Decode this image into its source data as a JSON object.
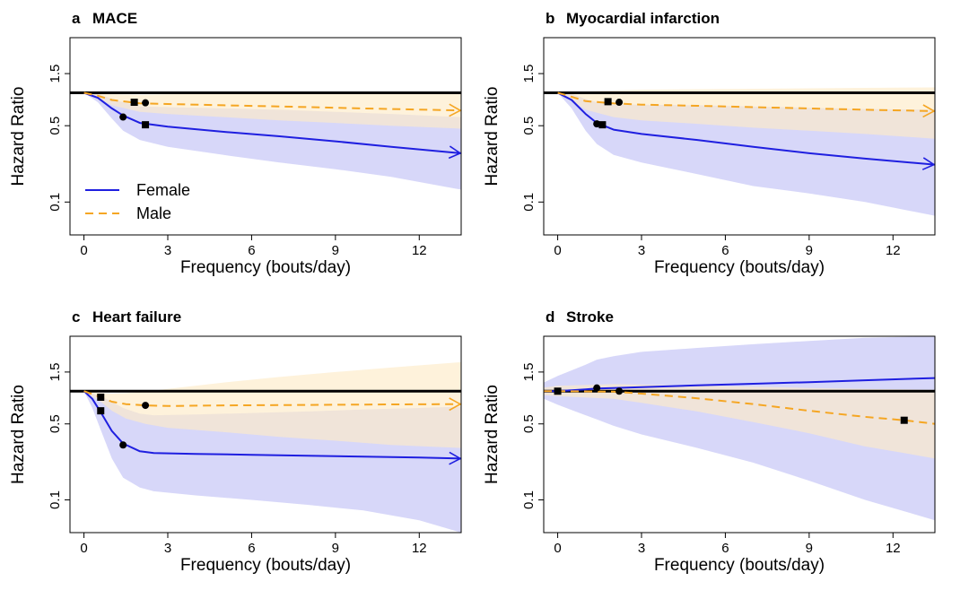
{
  "figure": {
    "xlabel": "Frequency (bouts/day)",
    "ylabel": "Hazard Ratio",
    "legend": {
      "position": "bottom-left of panel a",
      "entries": [
        {
          "name": "Female",
          "color": "#1f1fe0",
          "style": "solid"
        },
        {
          "name": "Male",
          "color": "#f5a623",
          "style": "dashed"
        }
      ]
    },
    "colors": {
      "female": "#1f1fe0",
      "male": "#f5a623",
      "female_band": "#c9c9f7",
      "male_band": "#fdebc8",
      "reference": "#000000"
    }
  },
  "chart_data": [
    {
      "type": "line",
      "letter": "a",
      "title": "MACE",
      "xlabel": "Frequency (bouts/day)",
      "ylabel": "Hazard Ratio",
      "xlim": [
        -0.5,
        13.5
      ],
      "ylim": [
        0.05,
        3.2
      ],
      "yscale": "log",
      "xticks": [
        0,
        3,
        6,
        9,
        12
      ],
      "yticks": [
        0.1,
        0.5,
        1.5
      ],
      "ytick_labels": [
        "0.1",
        "0.5",
        "1.5"
      ],
      "reference_hr": 1.0,
      "arrow_end": true,
      "series": [
        {
          "name": "Female",
          "x": [
            0,
            0.5,
            1,
            1.4,
            2,
            3,
            5,
            7,
            9,
            11,
            13.5
          ],
          "y": [
            1.0,
            0.9,
            0.72,
            0.62,
            0.53,
            0.49,
            0.44,
            0.4,
            0.36,
            0.32,
            0.28
          ],
          "lower": [
            1.0,
            0.82,
            0.58,
            0.45,
            0.37,
            0.32,
            0.27,
            0.23,
            0.2,
            0.17,
            0.13
          ],
          "upper": [
            1.0,
            0.98,
            0.88,
            0.82,
            0.75,
            0.74,
            0.72,
            0.7,
            0.67,
            0.64,
            0.6
          ],
          "markers": [
            {
              "x": 1.4,
              "y": 0.6,
              "shape": "circle"
            },
            {
              "x": 2.2,
              "y": 0.51,
              "shape": "square"
            }
          ]
        },
        {
          "name": "Male",
          "x": [
            0,
            0.5,
            1,
            2,
            3,
            5,
            7,
            9,
            11,
            13.5
          ],
          "y": [
            1.0,
            0.94,
            0.86,
            0.8,
            0.79,
            0.77,
            0.75,
            0.73,
            0.71,
            0.69
          ],
          "lower": [
            1.0,
            0.9,
            0.77,
            0.67,
            0.64,
            0.6,
            0.56,
            0.53,
            0.5,
            0.47
          ],
          "upper": [
            1.0,
            0.99,
            0.97,
            0.96,
            0.97,
            0.98,
            0.99,
            1.0,
            1.01,
            1.02
          ],
          "markers": [
            {
              "x": 1.8,
              "y": 0.82,
              "shape": "square"
            },
            {
              "x": 2.2,
              "y": 0.81,
              "shape": "circle"
            }
          ]
        }
      ]
    },
    {
      "type": "line",
      "letter": "b",
      "title": "Myocardial infarction",
      "xlabel": "Frequency (bouts/day)",
      "ylabel": "Hazard Ratio",
      "xlim": [
        -0.5,
        13.5
      ],
      "ylim": [
        0.05,
        3.2
      ],
      "yscale": "log",
      "xticks": [
        0,
        3,
        6,
        9,
        12
      ],
      "yticks": [
        0.1,
        0.5,
        1.5
      ],
      "ytick_labels": [
        "0.1",
        "0.5",
        "1.5"
      ],
      "reference_hr": 1.0,
      "arrow_end": true,
      "series": [
        {
          "name": "Female",
          "x": [
            0,
            0.5,
            1,
            1.4,
            2,
            3,
            5,
            7,
            9,
            11,
            13.5
          ],
          "y": [
            1.0,
            0.86,
            0.64,
            0.53,
            0.46,
            0.42,
            0.37,
            0.32,
            0.28,
            0.25,
            0.22
          ],
          "lower": [
            1.0,
            0.72,
            0.45,
            0.34,
            0.27,
            0.23,
            0.18,
            0.14,
            0.12,
            0.1,
            0.075
          ],
          "upper": [
            1.0,
            0.98,
            0.88,
            0.82,
            0.78,
            0.78,
            0.77,
            0.75,
            0.73,
            0.71,
            0.7
          ],
          "markers": [
            {
              "x": 1.4,
              "y": 0.52,
              "shape": "circle"
            },
            {
              "x": 1.6,
              "y": 0.51,
              "shape": "square"
            }
          ]
        },
        {
          "name": "Male",
          "x": [
            0,
            0.5,
            1,
            2,
            3,
            5,
            7,
            9,
            11,
            13.5
          ],
          "y": [
            1.0,
            0.92,
            0.84,
            0.8,
            0.78,
            0.76,
            0.74,
            0.72,
            0.7,
            0.68
          ],
          "lower": [
            1.0,
            0.85,
            0.7,
            0.6,
            0.56,
            0.52,
            0.48,
            0.45,
            0.42,
            0.38
          ],
          "upper": [
            1.0,
            1.02,
            1.03,
            1.05,
            1.07,
            1.08,
            1.09,
            1.1,
            1.11,
            1.12
          ],
          "markers": [
            {
              "x": 1.8,
              "y": 0.83,
              "shape": "square"
            },
            {
              "x": 2.2,
              "y": 0.82,
              "shape": "circle"
            }
          ]
        }
      ]
    },
    {
      "type": "line",
      "letter": "c",
      "title": "Heart failure",
      "xlabel": "Frequency (bouts/day)",
      "ylabel": "Hazard Ratio",
      "xlim": [
        -0.5,
        13.5
      ],
      "ylim": [
        0.05,
        3.2
      ],
      "yscale": "log",
      "xticks": [
        0,
        3,
        6,
        9,
        12
      ],
      "yticks": [
        0.1,
        0.5,
        1.5
      ],
      "ytick_labels": [
        "0.1",
        "0.5",
        "1.5"
      ],
      "reference_hr": 1.0,
      "arrow_end": true,
      "series": [
        {
          "name": "Female",
          "x": [
            0,
            0.3,
            0.6,
            1,
            1.4,
            2,
            2.5,
            4,
            6,
            8,
            10,
            12,
            13.5
          ],
          "y": [
            1.0,
            0.85,
            0.64,
            0.43,
            0.33,
            0.28,
            0.27,
            0.265,
            0.26,
            0.255,
            0.25,
            0.245,
            0.24
          ],
          "lower": [
            1.0,
            0.7,
            0.44,
            0.24,
            0.16,
            0.13,
            0.12,
            0.11,
            0.1,
            0.09,
            0.08,
            0.065,
            0.05
          ],
          "upper": [
            1.0,
            0.95,
            0.9,
            0.8,
            0.7,
            0.62,
            0.6,
            0.61,
            0.63,
            0.65,
            0.68,
            0.7,
            0.72
          ],
          "markers": [
            {
              "x": 0.6,
              "y": 0.66,
              "shape": "square"
            },
            {
              "x": 1.4,
              "y": 0.32,
              "shape": "circle"
            }
          ]
        },
        {
          "name": "Male",
          "x": [
            0,
            0.6,
            1,
            1.5,
            2.2,
            3,
            5,
            7,
            9,
            11,
            13.5
          ],
          "y": [
            1.0,
            0.88,
            0.8,
            0.76,
            0.74,
            0.73,
            0.74,
            0.745,
            0.75,
            0.755,
            0.76
          ],
          "lower": [
            1.0,
            0.8,
            0.66,
            0.56,
            0.5,
            0.46,
            0.42,
            0.38,
            0.35,
            0.32,
            0.3
          ],
          "upper": [
            1.0,
            0.96,
            0.95,
            0.96,
            0.99,
            1.05,
            1.2,
            1.35,
            1.5,
            1.65,
            1.85
          ],
          "markers": [
            {
              "x": 0.6,
              "y": 0.88,
              "shape": "square"
            },
            {
              "x": 2.2,
              "y": 0.74,
              "shape": "circle"
            }
          ]
        }
      ]
    },
    {
      "type": "line",
      "letter": "d",
      "title": "Stroke",
      "xlabel": "Frequency (bouts/day)",
      "ylabel": "Hazard Ratio",
      "xlim": [
        -0.5,
        13.5
      ],
      "ylim": [
        0.05,
        3.2
      ],
      "yscale": "log",
      "xticks": [
        0,
        3,
        6,
        9,
        12
      ],
      "yticks": [
        0.1,
        0.5,
        1.5
      ],
      "ytick_labels": [
        "0.1",
        "0.5",
        "1.5"
      ],
      "reference_hr": 1.0,
      "arrow_end": false,
      "series": [
        {
          "name": "Female",
          "x": [
            -0.5,
            0,
            1,
            1.4,
            2,
            3,
            5,
            7,
            9,
            11,
            13.5
          ],
          "y": [
            1.0,
            1.0,
            1.04,
            1.06,
            1.07,
            1.09,
            1.13,
            1.17,
            1.21,
            1.26,
            1.32
          ],
          "lower": [
            0.85,
            0.75,
            0.6,
            0.55,
            0.48,
            0.4,
            0.3,
            0.22,
            0.15,
            0.1,
            0.065
          ],
          "upper": [
            1.2,
            1.38,
            1.75,
            1.95,
            2.1,
            2.3,
            2.5,
            2.7,
            2.9,
            3.1,
            3.2
          ],
          "markers": [
            {
              "x": 1.4,
              "y": 1.07,
              "shape": "circle"
            },
            {
              "x": 2.2,
              "y": 1.0,
              "shape": "circle"
            }
          ]
        },
        {
          "name": "Male",
          "x": [
            -0.5,
            0,
            2,
            3,
            5,
            7,
            9,
            11,
            12.4,
            13.5
          ],
          "y": [
            1.0,
            1.0,
            0.99,
            0.95,
            0.86,
            0.76,
            0.66,
            0.58,
            0.54,
            0.5
          ],
          "lower": [
            0.92,
            0.9,
            0.85,
            0.78,
            0.65,
            0.52,
            0.41,
            0.31,
            0.27,
            0.24
          ],
          "upper": [
            1.08,
            1.12,
            1.16,
            1.15,
            1.12,
            1.1,
            1.07,
            1.05,
            1.04,
            1.03
          ],
          "markers": [
            {
              "x": 0,
              "y": 1.0,
              "shape": "square"
            },
            {
              "x": 12.4,
              "y": 0.54,
              "shape": "square"
            }
          ]
        }
      ]
    }
  ]
}
